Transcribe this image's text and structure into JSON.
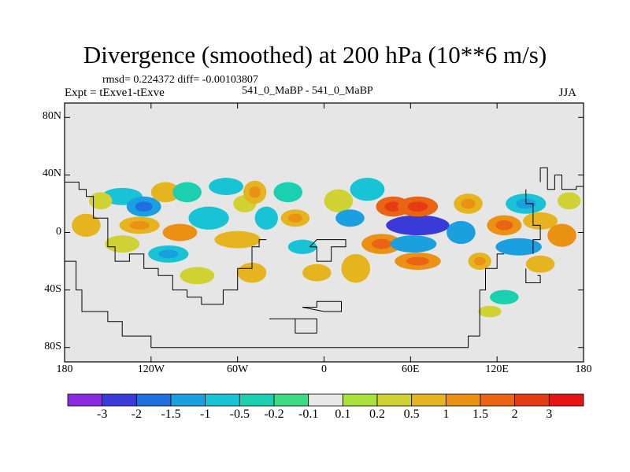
{
  "chart_data": {
    "type": "heatmap",
    "title": "Divergence (smoothed) at 200 hPa (10**6 m/s)",
    "stats_line": "rmsd= 0.224372 diff= -0.00103807",
    "expt_label": "Expt = tExve1-tExve",
    "cases_label": "541_0_MaBP - 541_0_MaBP",
    "season": "JJA",
    "xlabel": "",
    "ylabel": "",
    "xlim": [
      -180,
      180
    ],
    "ylim": [
      -90,
      90
    ],
    "x_ticks": [
      {
        "value": -180,
        "label": "180"
      },
      {
        "value": -120,
        "label": "120W"
      },
      {
        "value": -60,
        "label": "60W"
      },
      {
        "value": 0,
        "label": "0"
      },
      {
        "value": 60,
        "label": "60E"
      },
      {
        "value": 120,
        "label": "120E"
      },
      {
        "value": 180,
        "label": "180"
      }
    ],
    "y_ticks": [
      {
        "value": 80,
        "label": "80N"
      },
      {
        "value": 40,
        "label": "40N"
      },
      {
        "value": 0,
        "label": "0"
      },
      {
        "value": -40,
        "label": "40S"
      },
      {
        "value": -80,
        "label": "80S"
      }
    ],
    "colorbar": {
      "boundaries": [
        "-3",
        "-2",
        "-1.5",
        "-1",
        "-0.5",
        "-0.2",
        "-0.1",
        "0.1",
        "0.2",
        "0.5",
        "1",
        "1.5",
        "2",
        "3"
      ],
      "colors": [
        "#8a2be2",
        "#3a3ad8",
        "#1e6fe0",
        "#1aa0e0",
        "#19c3d6",
        "#1bd0b0",
        "#3ddc84",
        "#e8e8e8",
        "#a8e03c",
        "#cfd232",
        "#e6b41e",
        "#eb9114",
        "#eb6414",
        "#e63c14",
        "#e61414"
      ]
    },
    "field_blobs": [
      {
        "lon": -165,
        "lat": 5,
        "value": 0.6,
        "rx": 10,
        "ry": 8
      },
      {
        "lon": -140,
        "lat": 25,
        "value": -0.5,
        "rx": 14,
        "ry": 6
      },
      {
        "lon": -155,
        "lat": 22,
        "value": 0.5,
        "rx": 8,
        "ry": 6
      },
      {
        "lon": -125,
        "lat": 18,
        "value": -1.2,
        "rx": 12,
        "ry": 7
      },
      {
        "lon": -128,
        "lat": 5,
        "value": 0.9,
        "rx": 14,
        "ry": 6
      },
      {
        "lon": -140,
        "lat": -8,
        "value": 0.5,
        "rx": 12,
        "ry": 6
      },
      {
        "lon": -108,
        "lat": -15,
        "value": -0.8,
        "rx": 14,
        "ry": 6
      },
      {
        "lon": -100,
        "lat": 0,
        "value": 1.1,
        "rx": 12,
        "ry": 6
      },
      {
        "lon": -110,
        "lat": 28,
        "value": 0.7,
        "rx": 10,
        "ry": 7
      },
      {
        "lon": -95,
        "lat": 28,
        "value": -0.4,
        "rx": 10,
        "ry": 7
      },
      {
        "lon": -88,
        "lat": -30,
        "value": 0.5,
        "rx": 12,
        "ry": 6
      },
      {
        "lon": -80,
        "lat": 10,
        "value": -0.7,
        "rx": 14,
        "ry": 8
      },
      {
        "lon": -68,
        "lat": 32,
        "value": -0.5,
        "rx": 12,
        "ry": 6
      },
      {
        "lon": -60,
        "lat": -5,
        "value": 0.7,
        "rx": 16,
        "ry": 6
      },
      {
        "lon": -55,
        "lat": 20,
        "value": 0.4,
        "rx": 8,
        "ry": 6
      },
      {
        "lon": -48,
        "lat": 28,
        "value": 1.0,
        "rx": 8,
        "ry": 8
      },
      {
        "lon": -40,
        "lat": 10,
        "value": -0.6,
        "rx": 8,
        "ry": 8
      },
      {
        "lon": -50,
        "lat": -28,
        "value": 0.6,
        "rx": 10,
        "ry": 7
      },
      {
        "lon": -25,
        "lat": 28,
        "value": -0.4,
        "rx": 10,
        "ry": 7
      },
      {
        "lon": -20,
        "lat": 10,
        "value": 0.8,
        "rx": 10,
        "ry": 6
      },
      {
        "lon": -15,
        "lat": -10,
        "value": -0.5,
        "rx": 10,
        "ry": 5
      },
      {
        "lon": -5,
        "lat": -28,
        "value": 0.7,
        "rx": 10,
        "ry": 6
      },
      {
        "lon": 10,
        "lat": 22,
        "value": 0.4,
        "rx": 10,
        "ry": 8
      },
      {
        "lon": 18,
        "lat": 10,
        "value": -1.0,
        "rx": 10,
        "ry": 6
      },
      {
        "lon": 22,
        "lat": -25,
        "value": 0.6,
        "rx": 10,
        "ry": 10
      },
      {
        "lon": 30,
        "lat": 30,
        "value": -0.5,
        "rx": 12,
        "ry": 8
      },
      {
        "lon": 48,
        "lat": 18,
        "value": 1.6,
        "rx": 12,
        "ry": 7
      },
      {
        "lon": 40,
        "lat": -8,
        "value": 1.2,
        "rx": 14,
        "ry": 7
      },
      {
        "lon": 65,
        "lat": 5,
        "value": -2.1,
        "rx": 22,
        "ry": 7
      },
      {
        "lon": 65,
        "lat": 18,
        "value": 1.8,
        "rx": 14,
        "ry": 7
      },
      {
        "lon": 62,
        "lat": -8,
        "value": -1.1,
        "rx": 16,
        "ry": 6
      },
      {
        "lon": 65,
        "lat": -20,
        "value": 1.2,
        "rx": 16,
        "ry": 6
      },
      {
        "lon": 95,
        "lat": 0,
        "value": -1.0,
        "rx": 10,
        "ry": 8
      },
      {
        "lon": 100,
        "lat": 20,
        "value": 1.0,
        "rx": 10,
        "ry": 7
      },
      {
        "lon": 108,
        "lat": -20,
        "value": 1.0,
        "rx": 8,
        "ry": 6
      },
      {
        "lon": 125,
        "lat": 5,
        "value": 1.3,
        "rx": 12,
        "ry": 7
      },
      {
        "lon": 135,
        "lat": -10,
        "value": -1.0,
        "rx": 16,
        "ry": 6
      },
      {
        "lon": 140,
        "lat": 20,
        "value": -0.8,
        "rx": 14,
        "ry": 7
      },
      {
        "lon": 150,
        "lat": 8,
        "value": 0.7,
        "rx": 12,
        "ry": 6
      },
      {
        "lon": 150,
        "lat": -22,
        "value": 0.6,
        "rx": 10,
        "ry": 6
      },
      {
        "lon": 165,
        "lat": -2,
        "value": 1.1,
        "rx": 10,
        "ry": 8
      },
      {
        "lon": 170,
        "lat": 22,
        "value": 0.4,
        "rx": 8,
        "ry": 6
      },
      {
        "lon": 125,
        "lat": -45,
        "value": -0.4,
        "rx": 10,
        "ry": 5
      },
      {
        "lon": 115,
        "lat": -55,
        "value": 0.3,
        "rx": 8,
        "ry": 4
      }
    ]
  }
}
